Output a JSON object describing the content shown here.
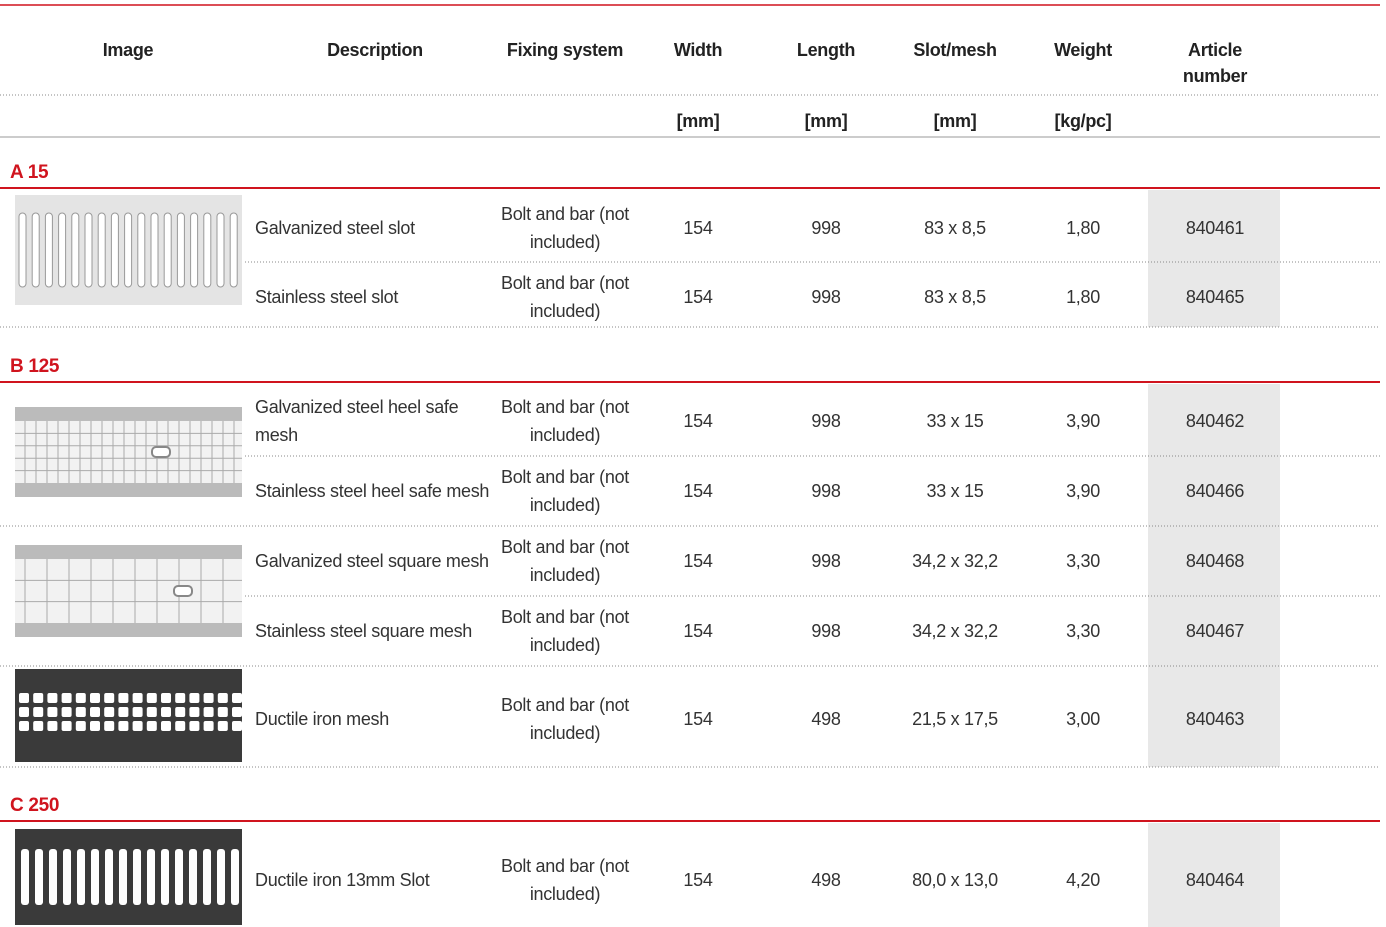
{
  "header": {
    "columns": [
      "Image",
      "Description",
      "Fixing system",
      "Width",
      "Length",
      "Slot/mesh",
      "Weight",
      "Article number"
    ],
    "units": [
      "[mm]",
      "[mm]",
      "[mm]",
      "[kg/pc]"
    ]
  },
  "sections": [
    {
      "name": "A 15",
      "rows": [
        {
          "description": "Galvanized steel slot",
          "fixing": "Bolt and bar (not included)",
          "width": 154,
          "length": 998,
          "slot_mesh": "83 x 8,5",
          "weight": "1,80",
          "article_number": 840461
        },
        {
          "description": "Stainless steel slot",
          "fixing": "Bolt and bar (not included)",
          "width": 154,
          "length": 998,
          "slot_mesh": "83 x 8,5",
          "weight": "1,80",
          "article_number": 840465
        }
      ]
    },
    {
      "name": "B 125",
      "rows": [
        {
          "description": "Galvanized steel heel safe mesh",
          "fixing": "Bolt and bar (not included)",
          "width": 154,
          "length": 998,
          "slot_mesh": "33 x 15",
          "weight": "3,90",
          "article_number": 840462
        },
        {
          "description": "Stainless steel heel safe mesh",
          "fixing": "Bolt and bar (not included)",
          "width": 154,
          "length": 998,
          "slot_mesh": "33 x 15",
          "weight": "3,90",
          "article_number": 840466
        },
        {
          "description": "Galvanized steel square mesh",
          "fixing": "Bolt and bar (not included)",
          "width": 154,
          "length": 998,
          "slot_mesh": "34,2 x 32,2",
          "weight": "3,30",
          "article_number": 840468
        },
        {
          "description": "Stainless steel square mesh",
          "fixing": "Bolt and bar (not included)",
          "width": 154,
          "length": 998,
          "slot_mesh": "34,2 x 32,2",
          "weight": "3,30",
          "article_number": 840467
        },
        {
          "description": "Ductile iron mesh",
          "fixing": "Bolt and bar (not included)",
          "width": 154,
          "length": 498,
          "slot_mesh": "21,5 x 17,5",
          "weight": "3,00",
          "article_number": 840463
        }
      ]
    },
    {
      "name": "C 250",
      "rows": [
        {
          "description": "Ductile iron 13mm Slot",
          "fixing": "Bolt and bar (not included)",
          "width": 154,
          "length": 498,
          "slot_mesh": "80,0 x 13,0",
          "weight": "4,20",
          "article_number": 840464
        }
      ]
    }
  ]
}
